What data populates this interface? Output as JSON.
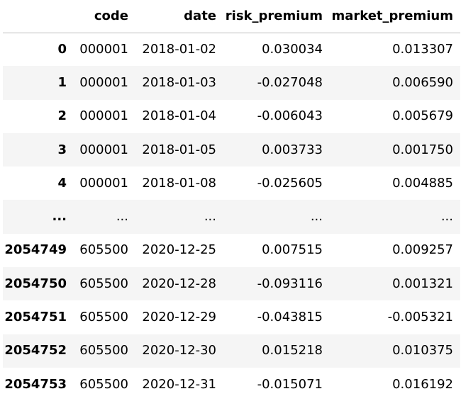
{
  "table": {
    "columns": [
      "",
      "code",
      "date",
      "risk_premium",
      "market_premium"
    ],
    "rows": [
      {
        "index": "0",
        "code": "000001",
        "date": "2018-01-02",
        "risk_premium": "0.030034",
        "market_premium": "0.013307"
      },
      {
        "index": "1",
        "code": "000001",
        "date": "2018-01-03",
        "risk_premium": "-0.027048",
        "market_premium": "0.006590"
      },
      {
        "index": "2",
        "code": "000001",
        "date": "2018-01-04",
        "risk_premium": "-0.006043",
        "market_premium": "0.005679"
      },
      {
        "index": "3",
        "code": "000001",
        "date": "2018-01-05",
        "risk_premium": "0.003733",
        "market_premium": "0.001750"
      },
      {
        "index": "4",
        "code": "000001",
        "date": "2018-01-08",
        "risk_premium": "-0.025605",
        "market_premium": "0.004885"
      },
      {
        "index": "...",
        "code": "...",
        "date": "...",
        "risk_premium": "...",
        "market_premium": "..."
      },
      {
        "index": "2054749",
        "code": "605500",
        "date": "2020-12-25",
        "risk_premium": "0.007515",
        "market_premium": "0.009257"
      },
      {
        "index": "2054750",
        "code": "605500",
        "date": "2020-12-28",
        "risk_premium": "-0.093116",
        "market_premium": "0.001321"
      },
      {
        "index": "2054751",
        "code": "605500",
        "date": "2020-12-29",
        "risk_premium": "-0.043815",
        "market_premium": "-0.005321"
      },
      {
        "index": "2054752",
        "code": "605500",
        "date": "2020-12-30",
        "risk_premium": "0.015218",
        "market_premium": "0.010375"
      },
      {
        "index": "2054753",
        "code": "605500",
        "date": "2020-12-31",
        "risk_premium": "-0.015071",
        "market_premium": "0.016192"
      }
    ]
  }
}
